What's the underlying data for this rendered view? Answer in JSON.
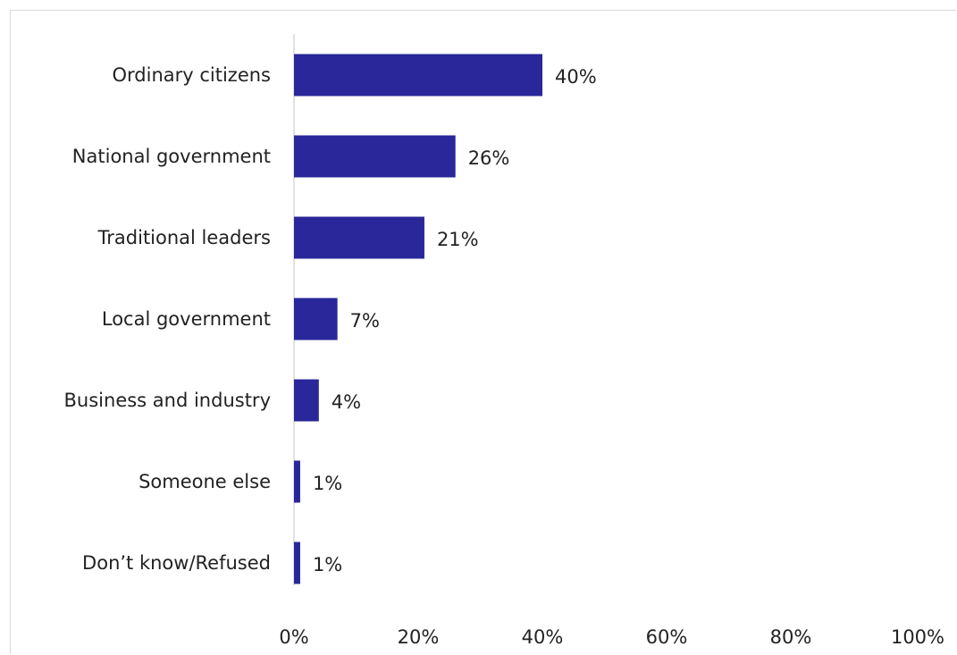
{
  "chart_data": {
    "type": "bar",
    "orientation": "horizontal",
    "categories": [
      "Ordinary citizens",
      "National government",
      "Traditional leaders",
      "Local government",
      "Business and industry",
      "Someone else",
      "Don’t know/Refused"
    ],
    "values": [
      40,
      26,
      21,
      7,
      4,
      1,
      1
    ],
    "value_labels": [
      "40%",
      "26%",
      "21%",
      "7%",
      "4%",
      "1%",
      "1%"
    ],
    "xlim": [
      0,
      100
    ],
    "x_ticks": [
      0,
      20,
      40,
      60,
      80,
      100
    ],
    "x_tick_labels": [
      "0%",
      "20%",
      "40%",
      "60%",
      "80%",
      "100%"
    ],
    "grid": false,
    "bar_color": "#29279A",
    "axis_color": "#d9d9d9"
  }
}
